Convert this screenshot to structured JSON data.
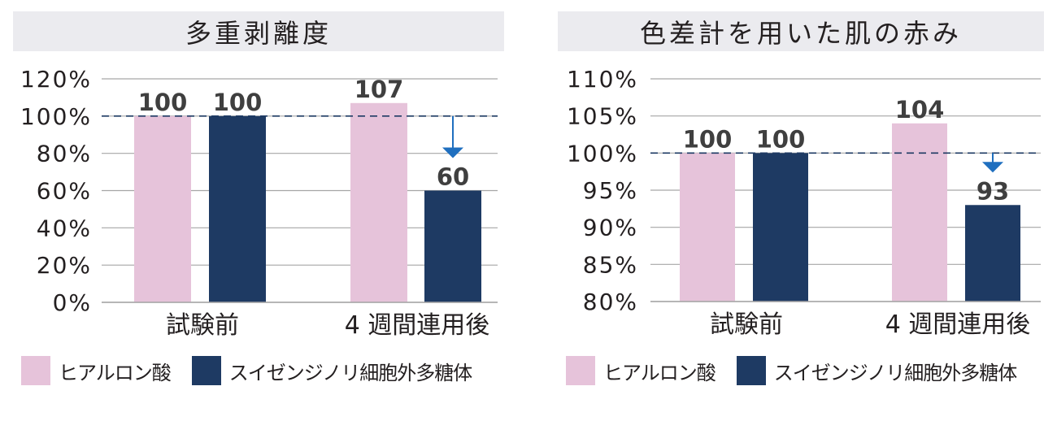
{
  "colors": {
    "hyaluronic": "#e6c3da",
    "polysaccharide": "#1e3a63",
    "arrow": "#1f6fbf",
    "grid": "#a6a6a6",
    "reference_line": "#1e3a63",
    "text": "#231f20",
    "title_bg": "#ebebef"
  },
  "chart_data": [
    {
      "type": "bar",
      "title": "多重剥離度",
      "categories": [
        "試験前",
        "4 週間連用後"
      ],
      "series": [
        {
          "name": "ヒアルロン酸",
          "values": [
            100,
            107
          ]
        },
        {
          "name": "スイゼンジノリ細胞外多糖体",
          "values": [
            100,
            60
          ]
        }
      ],
      "data_labels": [
        [
          "100",
          "107"
        ],
        [
          "100",
          "60"
        ]
      ],
      "y_ticks": [
        "0%",
        "20%",
        "40%",
        "60%",
        "80%",
        "100%",
        "120%"
      ],
      "ylim": [
        0,
        120
      ],
      "y_step": 20,
      "reference_line": 100,
      "arrow": {
        "category": 1,
        "series": 1,
        "from": 100,
        "to": 60
      },
      "grid": true,
      "legend_position": "bottom"
    },
    {
      "type": "bar",
      "title": "色差計を用いた肌の赤み",
      "categories": [
        "試験前",
        "4 週間連用後"
      ],
      "series": [
        {
          "name": "ヒアルロン酸",
          "values": [
            100,
            104
          ]
        },
        {
          "name": "スイゼンジノリ細胞外多糖体",
          "values": [
            100,
            93
          ]
        }
      ],
      "data_labels": [
        [
          "100",
          "104"
        ],
        [
          "100",
          "93"
        ]
      ],
      "y_ticks": [
        "80%",
        "85%",
        "90%",
        "95%",
        "100%",
        "105%",
        "110%"
      ],
      "ylim": [
        80,
        110
      ],
      "y_step": 5,
      "reference_line": 100,
      "arrow": {
        "category": 1,
        "series": 1,
        "from": 100,
        "to": 93
      },
      "grid": true,
      "legend_position": "bottom"
    }
  ]
}
